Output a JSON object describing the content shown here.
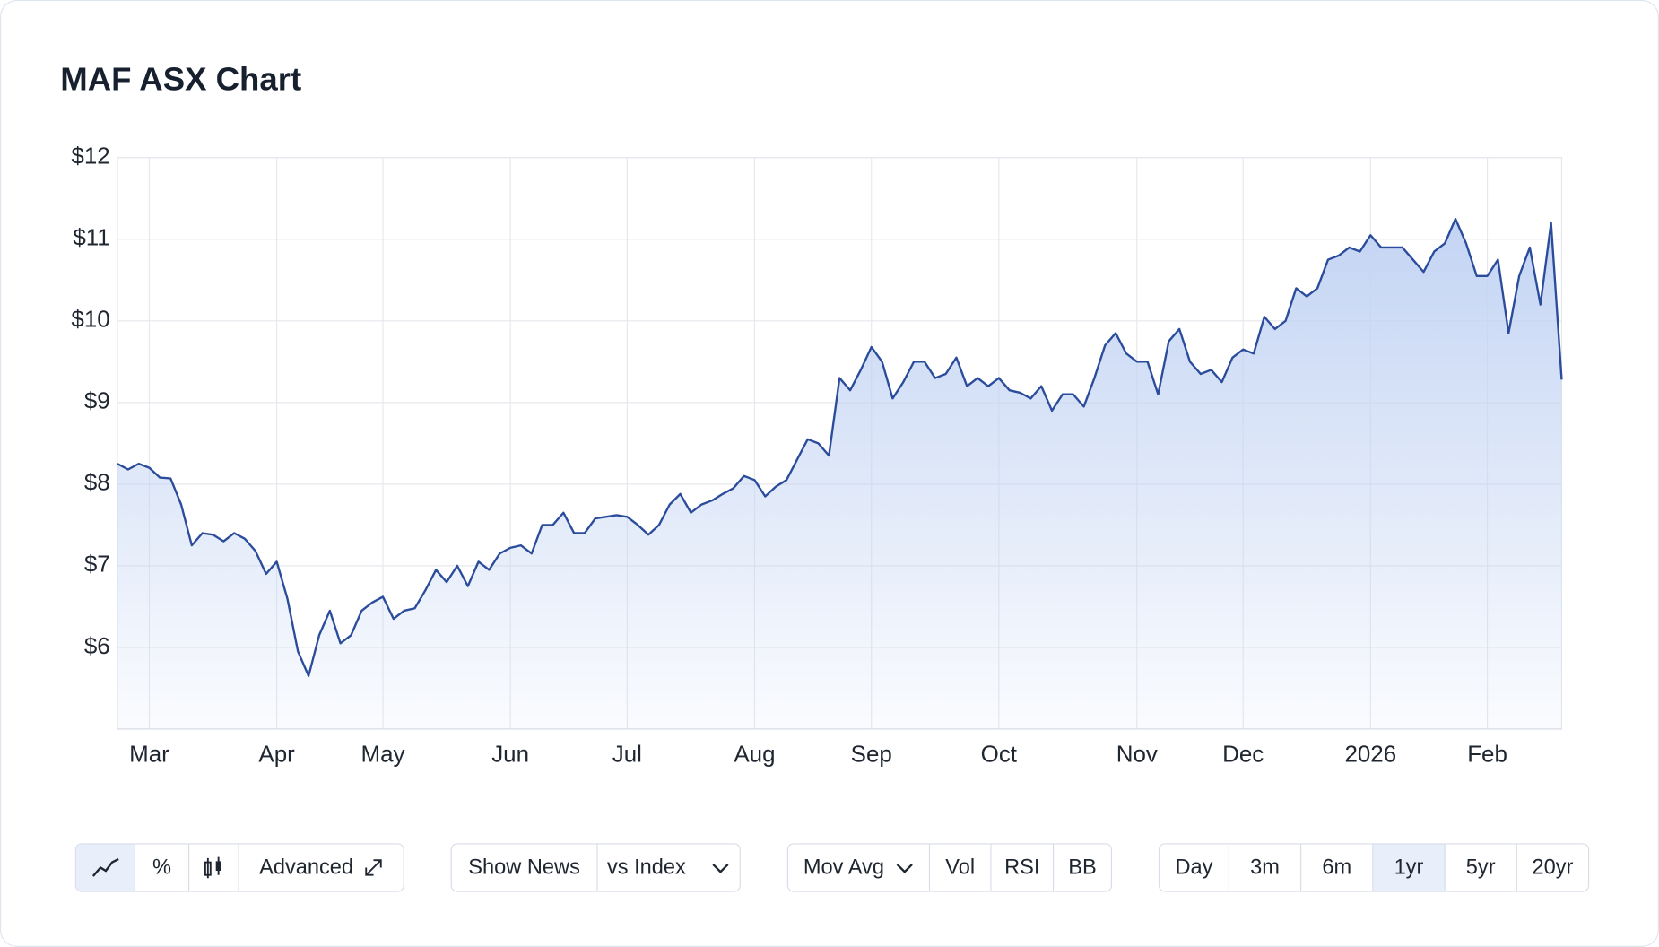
{
  "chart_data": {
    "type": "line",
    "title": "MAF ASX Chart",
    "categories": [
      null,
      null,
      null,
      "Mar",
      null,
      null,
      null,
      null,
      null,
      null,
      null,
      null,
      null,
      null,
      null,
      "Apr",
      null,
      null,
      null,
      null,
      null,
      null,
      null,
      null,
      null,
      "May",
      null,
      null,
      null,
      null,
      null,
      null,
      null,
      null,
      null,
      null,
      null,
      "Jun",
      null,
      null,
      null,
      null,
      null,
      null,
      null,
      null,
      null,
      null,
      "Jul",
      null,
      null,
      null,
      null,
      null,
      null,
      null,
      null,
      null,
      null,
      null,
      "Aug",
      null,
      null,
      null,
      null,
      null,
      null,
      null,
      null,
      null,
      null,
      "Sep",
      null,
      null,
      null,
      null,
      null,
      null,
      null,
      null,
      null,
      null,
      null,
      "Oct",
      null,
      null,
      null,
      null,
      null,
      null,
      null,
      null,
      null,
      null,
      null,
      null,
      "Nov",
      null,
      null,
      null,
      null,
      null,
      null,
      null,
      null,
      null,
      "Dec",
      null,
      null,
      null,
      null,
      null,
      null,
      null,
      null,
      null,
      null,
      null,
      "2026",
      null,
      null,
      null,
      null,
      null,
      null,
      null,
      null,
      null,
      null,
      "Feb",
      null,
      null,
      null,
      null,
      null,
      null,
      null
    ],
    "values": [
      8.25,
      8.18,
      8.25,
      8.2,
      8.08,
      8.07,
      7.75,
      7.25,
      7.4,
      7.38,
      7.3,
      7.4,
      7.33,
      7.18,
      6.9,
      7.05,
      6.6,
      5.95,
      5.65,
      6.15,
      6.45,
      6.05,
      6.15,
      6.45,
      6.55,
      6.62,
      6.35,
      6.45,
      6.48,
      6.7,
      6.95,
      6.8,
      7.0,
      6.75,
      7.05,
      6.95,
      7.15,
      7.22,
      7.25,
      7.15,
      7.5,
      7.5,
      7.65,
      7.4,
      7.4,
      7.58,
      7.6,
      7.62,
      7.6,
      7.5,
      7.38,
      7.5,
      7.75,
      7.88,
      7.65,
      7.75,
      7.8,
      7.88,
      7.95,
      8.1,
      8.05,
      7.85,
      7.97,
      8.05,
      8.3,
      8.55,
      8.5,
      8.35,
      9.3,
      9.15,
      9.4,
      9.68,
      9.5,
      9.05,
      9.25,
      9.5,
      9.5,
      9.3,
      9.35,
      9.55,
      9.2,
      9.3,
      9.2,
      9.3,
      9.15,
      9.12,
      9.05,
      9.2,
      8.9,
      9.1,
      9.1,
      8.95,
      9.3,
      9.7,
      9.85,
      9.6,
      9.5,
      9.5,
      9.1,
      9.75,
      9.9,
      9.5,
      9.35,
      9.4,
      9.25,
      9.55,
      9.65,
      9.6,
      10.05,
      9.9,
      10.0,
      10.4,
      10.3,
      10.4,
      10.75,
      10.8,
      10.9,
      10.85,
      11.05,
      10.9,
      10.9,
      10.9,
      10.75,
      10.6,
      10.85,
      10.95,
      11.25,
      10.95,
      10.55,
      10.55,
      10.75,
      9.85,
      10.55,
      10.9,
      10.2,
      11.2,
      9.28
    ],
    "color": "#2b4c9b",
    "ylim": [
      5,
      12
    ],
    "yticks": [
      {
        "value": 6,
        "label": "$6"
      },
      {
        "value": 7,
        "label": "$7"
      },
      {
        "value": 8,
        "label": "$8"
      },
      {
        "value": 9,
        "label": "$9"
      },
      {
        "value": 10,
        "label": "$10"
      },
      {
        "value": 11,
        "label": "$11"
      },
      {
        "value": 12,
        "label": "$12"
      }
    ],
    "grid": true
  },
  "toolbar": {
    "chart_type": [
      "%",
      "Advanced"
    ],
    "overlays": [
      "Show News",
      "vs Index"
    ],
    "indicators": [
      "Mov Avg",
      "Vol",
      "RSI",
      "BB"
    ],
    "ranges": [
      "Day",
      "3m",
      "6m",
      "1yr",
      "5yr",
      "20yr"
    ]
  }
}
